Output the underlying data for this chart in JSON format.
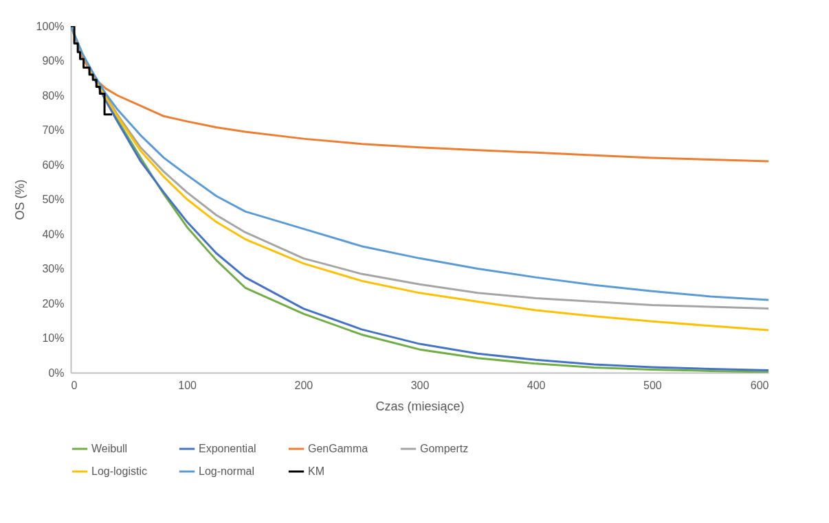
{
  "chart_data": {
    "type": "line",
    "xlabel": "Czas (miesiące)",
    "ylabel": "OS (%)",
    "xlim": [
      0,
      600
    ],
    "xticks": [
      0,
      100,
      200,
      300,
      400,
      500,
      600
    ],
    "ylim": [
      0,
      100
    ],
    "yticks": [
      {
        "value": 0,
        "label": "0%"
      },
      {
        "value": 10,
        "label": "10%"
      },
      {
        "value": 20,
        "label": "20%"
      },
      {
        "value": 30,
        "label": "30%"
      },
      {
        "value": 40,
        "label": "40%"
      },
      {
        "value": 50,
        "label": "50%"
      },
      {
        "value": 60,
        "label": "60%"
      },
      {
        "value": 70,
        "label": "70%"
      },
      {
        "value": 80,
        "label": "80%"
      },
      {
        "value": 90,
        "label": "90%"
      },
      {
        "value": 100,
        "label": "100%"
      }
    ],
    "x": [
      0,
      10,
      20,
      30,
      40,
      60,
      80,
      100,
      125,
      150,
      200,
      250,
      300,
      350,
      400,
      450,
      500,
      550,
      600
    ],
    "grid": false,
    "legend": "bottom",
    "series": [
      {
        "name": "Weibull",
        "color": "#70ad47",
        "values": [
          100,
          91.5,
          85,
          79,
          73,
          62,
          51.5,
          42,
          32.5,
          24.5,
          17,
          11,
          6.7,
          4.2,
          2.6,
          1.5,
          0.9,
          0.5,
          0.2
        ]
      },
      {
        "name": "Exponential",
        "color": "#4472c4",
        "values": [
          100,
          92,
          85,
          78.5,
          72.5,
          61,
          52,
          43.5,
          34.5,
          27.5,
          18.5,
          12.5,
          8.3,
          5.5,
          3.7,
          2.4,
          1.6,
          1.1,
          0.7
        ]
      },
      {
        "name": "GenGamma",
        "color": "#ed7d31",
        "values": [
          100,
          91,
          85,
          82,
          80,
          77,
          74,
          72.5,
          70.8,
          69.5,
          67.5,
          66,
          65,
          64.2,
          63.5,
          62.7,
          62,
          61.5,
          61
        ]
      },
      {
        "name": "Gompertz",
        "color": "#a5a5a5",
        "values": [
          100,
          92,
          85.5,
          80,
          74.5,
          65,
          58,
          52,
          45.5,
          40.5,
          33,
          28.5,
          25.5,
          23,
          21.5,
          20.5,
          19.5,
          19,
          18.5
        ]
      },
      {
        "name": "Log-logistic",
        "color": "#ffc000",
        "values": [
          100,
          92,
          85.5,
          79.5,
          74,
          64,
          56.5,
          50,
          43.5,
          38.5,
          31.5,
          26.5,
          23,
          20.5,
          18,
          16.3,
          14.8,
          13.5,
          12.3
        ]
      },
      {
        "name": "Log-normal",
        "color": "#5b9bd5",
        "values": [
          100,
          92,
          86,
          80.5,
          76,
          68.5,
          62,
          57,
          51,
          46.5,
          41.5,
          36.5,
          33,
          30,
          27.5,
          25.3,
          23.5,
          22,
          21
        ]
      },
      {
        "name": "KM",
        "color": "#000000",
        "type": "step",
        "x": [
          0,
          3,
          6,
          8,
          11,
          16,
          19,
          22,
          25,
          29,
          35.5
        ],
        "values": [
          100,
          95,
          92.5,
          90.5,
          88,
          86,
          84.5,
          82.5,
          80.5,
          74.5,
          74.5
        ]
      }
    ]
  }
}
